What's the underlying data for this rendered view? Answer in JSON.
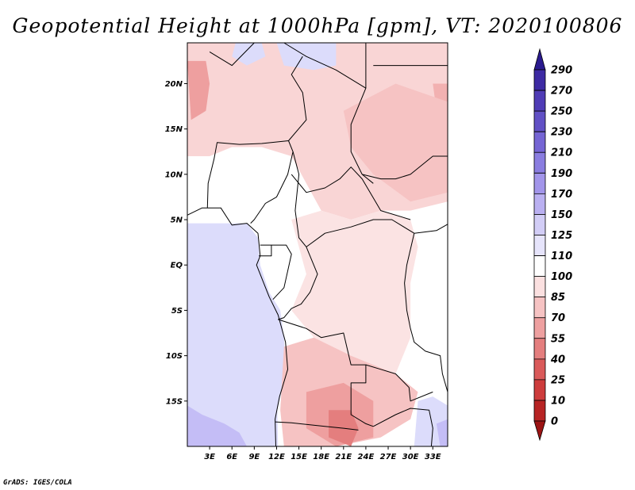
{
  "title": "Geopotential Height at 1000hPa [gpm], VT: 2020100806",
  "credit": "GrADS: IGES/COLA",
  "map": {
    "lon_range": [
      0,
      35
    ],
    "lat_range": [
      -20,
      24.5
    ],
    "lat_ticks": [
      {
        "value": 20,
        "label": "20N"
      },
      {
        "value": 15,
        "label": "15N"
      },
      {
        "value": 10,
        "label": "10N"
      },
      {
        "value": 5,
        "label": "5N"
      },
      {
        "value": 0,
        "label": "EQ"
      },
      {
        "value": -5,
        "label": "5S"
      },
      {
        "value": -10,
        "label": "10S"
      },
      {
        "value": -15,
        "label": "15S"
      }
    ],
    "lon_ticks": [
      {
        "value": 3,
        "label": "3E"
      },
      {
        "value": 6,
        "label": "6E"
      },
      {
        "value": 9,
        "label": "9E"
      },
      {
        "value": 12,
        "label": "12E"
      },
      {
        "value": 15,
        "label": "15E"
      },
      {
        "value": 18,
        "label": "18E"
      },
      {
        "value": 21,
        "label": "21E"
      },
      {
        "value": 24,
        "label": "24E"
      },
      {
        "value": 27,
        "label": "27E"
      },
      {
        "value": 30,
        "label": "30E"
      },
      {
        "value": 33,
        "label": "33E"
      }
    ]
  },
  "colorbar": {
    "labels": [
      "290",
      "270",
      "250",
      "230",
      "210",
      "190",
      "170",
      "150",
      "125",
      "110",
      "100",
      "85",
      "70",
      "55",
      "40",
      "25",
      "10",
      "0"
    ],
    "colors": [
      "#2a1a8e",
      "#3d2aa3",
      "#4f3cb6",
      "#6150c5",
      "#7565d4",
      "#8a7de0",
      "#a295ea",
      "#bab0f1",
      "#d2cdf6",
      "#e6e4fb",
      "#ffffff",
      "#fbe0e0",
      "#f6c3c3",
      "#eea0a0",
      "#e47e7e",
      "#da5a5a",
      "#cd3c3c",
      "#b72424",
      "#9c1414"
    ]
  },
  "fields": [
    {
      "name": "field-west-atlantic-ocean",
      "color": "#dcdcfb",
      "lonlat": [
        [
          0,
          4.6
        ],
        [
          8,
          4.6
        ],
        [
          9.5,
          3
        ],
        [
          9.8,
          0
        ],
        [
          11,
          -3
        ],
        [
          12.5,
          -5
        ],
        [
          13,
          -8
        ],
        [
          13.2,
          -12
        ],
        [
          12.1,
          -16
        ],
        [
          12.2,
          -20
        ],
        [
          0,
          -20
        ]
      ]
    },
    {
      "name": "field-southwest-ocean-low",
      "color": "#c4bdf6",
      "lonlat": [
        [
          0,
          -15.5
        ],
        [
          2,
          -16.5
        ],
        [
          5,
          -17.5
        ],
        [
          7,
          -18.5
        ],
        [
          8,
          -20
        ],
        [
          0,
          -20
        ]
      ]
    },
    {
      "name": "field-north-sahara-pink",
      "color": "#f9d5d5",
      "lonlat": [
        [
          0,
          24.5
        ],
        [
          35,
          24.5
        ],
        [
          35,
          7
        ],
        [
          30,
          6
        ],
        [
          26,
          6
        ],
        [
          22,
          5
        ],
        [
          18,
          6
        ],
        [
          16,
          9
        ],
        [
          14,
          12
        ],
        [
          10,
          13
        ],
        [
          6,
          13
        ],
        [
          3,
          12
        ],
        [
          0,
          12
        ]
      ]
    },
    {
      "name": "field-northwest-low",
      "color": "#dcdcfb",
      "lonlat": [
        [
          6.5,
          24.5
        ],
        [
          10,
          24.5
        ],
        [
          10.5,
          23
        ],
        [
          8,
          22
        ],
        [
          6,
          23
        ]
      ]
    },
    {
      "name": "field-north-central-low",
      "color": "#dcdcfb",
      "lonlat": [
        [
          12,
          24.5
        ],
        [
          20,
          24.5
        ],
        [
          20,
          22
        ],
        [
          17,
          21.5
        ],
        [
          13,
          22
        ]
      ]
    },
    {
      "name": "field-northwest-high",
      "color": "#ee9f9f",
      "lonlat": [
        [
          0,
          22.5
        ],
        [
          2.5,
          22.5
        ],
        [
          3,
          20
        ],
        [
          2.5,
          17
        ],
        [
          0.5,
          16
        ]
      ]
    },
    {
      "name": "field-northeast-high",
      "color": "#f2b1b1",
      "lonlat": [
        [
          33,
          20
        ],
        [
          35,
          20
        ],
        [
          35,
          16
        ],
        [
          33.5,
          17
        ]
      ]
    },
    {
      "name": "field-east-high",
      "color": "#f6c3c3",
      "lonlat": [
        [
          21,
          17
        ],
        [
          28,
          20
        ],
        [
          35,
          18
        ],
        [
          35,
          8
        ],
        [
          30,
          7
        ],
        [
          25,
          10
        ],
        [
          22,
          13
        ]
      ]
    },
    {
      "name": "field-central-pink",
      "color": "#fbe3e3",
      "lonlat": [
        [
          14,
          5
        ],
        [
          18,
          6
        ],
        [
          22,
          5
        ],
        [
          26,
          6
        ],
        [
          30,
          5
        ],
        [
          31,
          2
        ],
        [
          30,
          -2
        ],
        [
          30,
          -8
        ],
        [
          28,
          -12
        ],
        [
          22,
          -10
        ],
        [
          18,
          -9
        ],
        [
          14,
          -5
        ],
        [
          16,
          -1
        ]
      ]
    },
    {
      "name": "field-south-africa-pink",
      "color": "#f6c3c3",
      "lonlat": [
        [
          13,
          -9
        ],
        [
          17,
          -8
        ],
        [
          22,
          -10
        ],
        [
          28,
          -12
        ],
        [
          31,
          -14
        ],
        [
          30,
          -17
        ],
        [
          26,
          -19
        ],
        [
          20,
          -20
        ],
        [
          13,
          -20
        ],
        [
          12.5,
          -16
        ]
      ]
    },
    {
      "name": "field-south-africa-high",
      "color": "#ee9f9f",
      "lonlat": [
        [
          16,
          -14
        ],
        [
          21,
          -13
        ],
        [
          25,
          -15
        ],
        [
          25,
          -19
        ],
        [
          20,
          -20
        ],
        [
          16,
          -18
        ]
      ]
    },
    {
      "name": "field-south-africa-max",
      "color": "#e47e7e",
      "lonlat": [
        [
          19,
          -16
        ],
        [
          22,
          -16
        ],
        [
          23,
          -18
        ],
        [
          22,
          -20
        ],
        [
          19,
          -19
        ]
      ]
    },
    {
      "name": "field-southeast-low",
      "color": "#dcdcfb",
      "lonlat": [
        [
          31,
          -15
        ],
        [
          33,
          -14.5
        ],
        [
          35,
          -15.5
        ],
        [
          35,
          -20
        ],
        [
          30.5,
          -20
        ]
      ]
    },
    {
      "name": "field-southeast-lower",
      "color": "#c4bdf6",
      "lonlat": [
        [
          33.5,
          -17.5
        ],
        [
          35,
          -17
        ],
        [
          35,
          -20
        ],
        [
          34,
          -20
        ]
      ]
    }
  ],
  "borders": [
    {
      "name": "coastline-west-africa",
      "lonlat": [
        [
          0,
          5.5
        ],
        [
          2,
          6.3
        ],
        [
          4.5,
          6.3
        ],
        [
          6,
          4.4
        ],
        [
          8,
          4.6
        ],
        [
          9.5,
          3.5
        ],
        [
          9.8,
          1
        ],
        [
          9.3,
          0
        ],
        [
          11,
          -3.5
        ],
        [
          12.2,
          -5.5
        ],
        [
          13.2,
          -8.5
        ],
        [
          13.5,
          -11.5
        ],
        [
          12.4,
          -14.5
        ],
        [
          11.8,
          -17
        ],
        [
          11.9,
          -20
        ]
      ]
    },
    {
      "name": "border-nigeria",
      "lonlat": [
        [
          2.7,
          6.3
        ],
        [
          2.8,
          9
        ],
        [
          3.6,
          11.7
        ],
        [
          4,
          13.5
        ],
        [
          7,
          13.3
        ],
        [
          10,
          13.4
        ],
        [
          13.6,
          13.7
        ],
        [
          14.2,
          12.5
        ],
        [
          13.5,
          10
        ],
        [
          12,
          7.5
        ],
        [
          10.5,
          6.8
        ],
        [
          9,
          5
        ],
        [
          8.5,
          4.6
        ]
      ]
    },
    {
      "name": "border-chad-niger",
      "lonlat": [
        [
          15.5,
          23
        ],
        [
          14,
          21
        ],
        [
          15.5,
          19
        ],
        [
          16,
          16
        ],
        [
          13.6,
          13.7
        ]
      ]
    },
    {
      "name": "border-algeria-niger",
      "lonlat": [
        [
          3,
          23.5
        ],
        [
          6,
          22
        ],
        [
          9,
          24.5
        ]
      ]
    },
    {
      "name": "border-libya-chad",
      "lonlat": [
        [
          13,
          24.5
        ],
        [
          16,
          23
        ],
        [
          20,
          21.5
        ],
        [
          24,
          19.5
        ]
      ]
    },
    {
      "name": "border-libya-sudan",
      "lonlat": [
        [
          24,
          24.5
        ],
        [
          24,
          19.5
        ],
        [
          22,
          15.5
        ],
        [
          22,
          12.5
        ],
        [
          23.5,
          10
        ],
        [
          25,
          9
        ]
      ]
    },
    {
      "name": "border-sudan-egypt",
      "lonlat": [
        [
          25,
          22
        ],
        [
          35,
          22
        ]
      ]
    },
    {
      "name": "border-chad-car",
      "lonlat": [
        [
          14,
          10
        ],
        [
          16,
          8
        ],
        [
          18.5,
          8.5
        ],
        [
          20.5,
          9.5
        ],
        [
          22,
          10.8
        ],
        [
          23.5,
          9.5
        ],
        [
          26,
          6
        ],
        [
          30,
          5
        ]
      ]
    },
    {
      "name": "border-cameroon-car",
      "lonlat": [
        [
          14.2,
          12.5
        ],
        [
          15,
          10
        ],
        [
          14.5,
          6
        ],
        [
          15,
          3
        ],
        [
          16,
          2
        ]
      ]
    },
    {
      "name": "border-gabon-congo",
      "lonlat": [
        [
          11.3,
          2.2
        ],
        [
          13.3,
          2.2
        ],
        [
          14,
          1.2
        ],
        [
          13,
          -2.5
        ],
        [
          11.5,
          -3.8
        ]
      ]
    },
    {
      "name": "border-eq-guinea",
      "lonlat": [
        [
          9.8,
          2.2
        ],
        [
          11.3,
          2.2
        ],
        [
          11.3,
          1
        ],
        [
          9.6,
          1
        ]
      ]
    },
    {
      "name": "border-drc-congo-river",
      "lonlat": [
        [
          16,
          2
        ],
        [
          17.5,
          -1
        ],
        [
          16.5,
          -3
        ],
        [
          15.3,
          -4.3
        ],
        [
          14,
          -4.8
        ],
        [
          13,
          -5.8
        ],
        [
          12.2,
          -6
        ]
      ]
    },
    {
      "name": "border-car-drc",
      "lonlat": [
        [
          16,
          2
        ],
        [
          18.5,
          3.5
        ],
        [
          22,
          4.2
        ],
        [
          25,
          5
        ],
        [
          27.5,
          5
        ],
        [
          30.5,
          3.5
        ]
      ]
    },
    {
      "name": "border-drc-angola",
      "lonlat": [
        [
          12.2,
          -6
        ],
        [
          16,
          -7
        ],
        [
          18,
          -8
        ],
        [
          21,
          -7.5
        ],
        [
          22,
          -11
        ],
        [
          24,
          -11
        ],
        [
          24,
          -13
        ],
        [
          22,
          -13
        ],
        [
          22,
          -16.5
        ],
        [
          24,
          -17.5
        ],
        [
          25,
          -17.8
        ]
      ]
    },
    {
      "name": "border-angola-namibia",
      "lonlat": [
        [
          11.8,
          -17.3
        ],
        [
          14,
          -17.4
        ],
        [
          18.5,
          -17.8
        ],
        [
          21,
          -18
        ],
        [
          23,
          -18.2
        ]
      ]
    },
    {
      "name": "border-drc-zambia",
      "lonlat": [
        [
          24,
          -11
        ],
        [
          26,
          -11.5
        ],
        [
          28,
          -12
        ],
        [
          29.8,
          -13.5
        ],
        [
          30,
          -15
        ],
        [
          33,
          -14
        ]
      ]
    },
    {
      "name": "border-east-lakes",
      "lonlat": [
        [
          30.5,
          3.5
        ],
        [
          29.5,
          0
        ],
        [
          29.2,
          -2
        ],
        [
          29.5,
          -5
        ],
        [
          30,
          -7
        ],
        [
          30.5,
          -8.5
        ],
        [
          32,
          -9.5
        ],
        [
          34,
          -10
        ],
        [
          34.3,
          -12
        ],
        [
          35,
          -14
        ]
      ]
    },
    {
      "name": "border-uganda-kenya",
      "lonlat": [
        [
          30.5,
          3.5
        ],
        [
          33.5,
          3.8
        ],
        [
          35,
          4.5
        ]
      ]
    },
    {
      "name": "border-zambia-zimbabwe",
      "lonlat": [
        [
          25,
          -17.8
        ],
        [
          28,
          -16.5
        ],
        [
          30,
          -15.8
        ],
        [
          32.5,
          -16
        ],
        [
          33,
          -18
        ],
        [
          32.8,
          -20
        ]
      ]
    },
    {
      "name": "border-sudan-ss",
      "lonlat": [
        [
          23.5,
          10
        ],
        [
          26,
          9.5
        ],
        [
          28,
          9.5
        ],
        [
          30,
          10
        ],
        [
          33,
          12
        ],
        [
          35,
          12
        ]
      ]
    }
  ]
}
